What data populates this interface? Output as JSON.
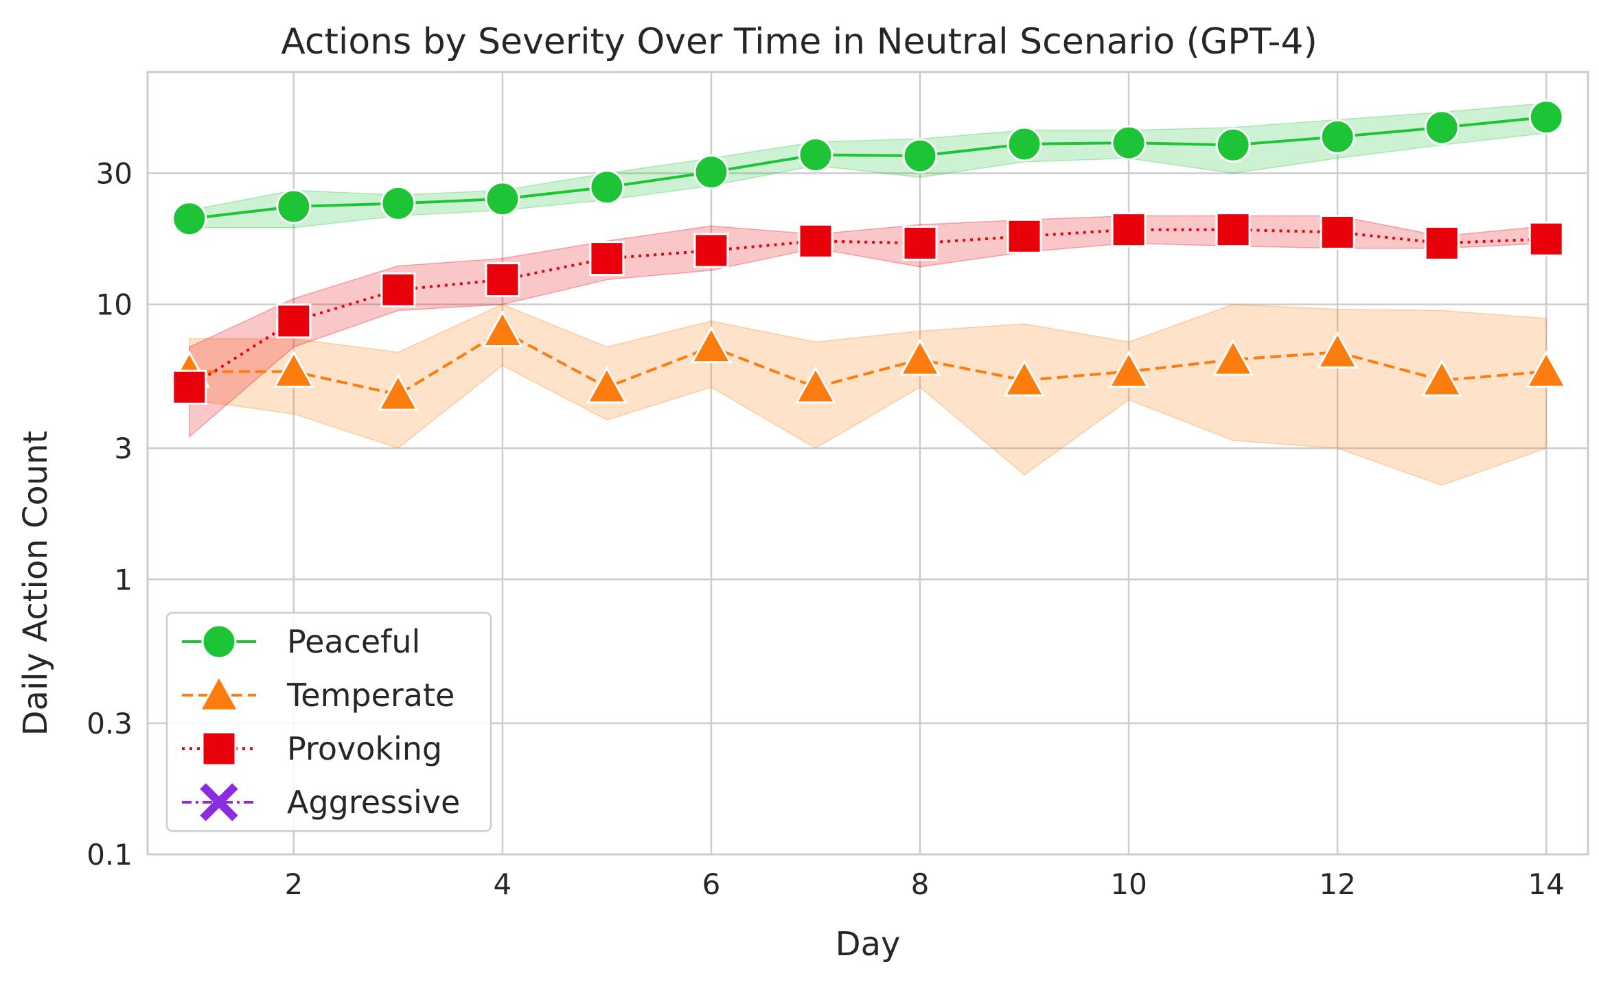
{
  "chart_data": {
    "type": "line",
    "title": "Actions by Severity Over Time in Neutral Scenario (GPT-4)",
    "xlabel": "Day",
    "ylabel": "Daily Action Count",
    "yscale": "log",
    "xlim": [
      0.6,
      14.4
    ],
    "ylim": [
      0.1,
      70
    ],
    "x_ticks": [
      2,
      4,
      6,
      8,
      10,
      12,
      14
    ],
    "y_ticks": [
      0.1,
      0.3,
      1,
      3,
      10,
      30
    ],
    "y_tick_labels": [
      "0.1",
      "0.3",
      "1",
      "3",
      "10",
      "30"
    ],
    "grid": true,
    "legend_position": "lower-left",
    "x": [
      1,
      2,
      3,
      4,
      5,
      6,
      7,
      8,
      9,
      10,
      11,
      12,
      13,
      14
    ],
    "series": [
      {
        "name": "Peaceful",
        "color": "#1dc536",
        "marker": "circle",
        "line_style": "solid",
        "values": [
          20.5,
          22.7,
          23.3,
          24.2,
          26.7,
          30.3,
          35.0,
          34.7,
          38.3,
          38.7,
          38.0,
          40.7,
          44.0,
          48.0
        ],
        "lower": [
          19.0,
          19.0,
          21.0,
          22.0,
          24.0,
          27.0,
          32.0,
          29.0,
          33.0,
          34.0,
          30.0,
          34.0,
          38.0,
          42.0
        ],
        "upper": [
          22.0,
          26.0,
          25.0,
          26.0,
          30.0,
          34.0,
          39.0,
          40.0,
          43.0,
          43.0,
          44.0,
          47.0,
          50.0,
          54.0
        ]
      },
      {
        "name": "Temperate",
        "color": "#fd7c0e",
        "marker": "triangle",
        "line_style": "dashed",
        "values": [
          5.7,
          5.7,
          4.7,
          8.0,
          5.0,
          7.0,
          5.0,
          6.3,
          5.3,
          5.7,
          6.3,
          6.7,
          5.3,
          5.7
        ],
        "lower": [
          4.5,
          4.0,
          3.0,
          6.0,
          3.8,
          5.0,
          3.0,
          5.0,
          2.4,
          4.5,
          3.2,
          3.0,
          2.2,
          3.0
        ],
        "upper": [
          7.5,
          7.5,
          6.7,
          10.0,
          7.0,
          8.7,
          7.3,
          8.0,
          8.5,
          7.3,
          10.0,
          9.6,
          9.5,
          8.9
        ]
      },
      {
        "name": "Provoking",
        "color": "#e8000b",
        "marker": "square",
        "line_style": "dotted",
        "values": [
          5.0,
          8.7,
          11.3,
          12.3,
          14.7,
          15.7,
          17.0,
          16.7,
          17.7,
          18.7,
          18.7,
          18.3,
          16.7,
          17.3
        ],
        "lower": [
          3.3,
          7.0,
          9.5,
          10.0,
          12.3,
          13.3,
          16.0,
          13.7,
          15.5,
          16.7,
          16.3,
          16.0,
          16.0,
          16.7
        ],
        "upper": [
          7.0,
          10.5,
          13.8,
          14.7,
          17.0,
          19.3,
          18.0,
          19.5,
          20.3,
          21.0,
          21.0,
          21.0,
          17.7,
          19.3
        ]
      },
      {
        "name": "Aggressive",
        "color": "#8b2be2",
        "marker": "x",
        "line_style": "dashdot",
        "values": [
          0,
          0,
          0,
          0,
          0,
          0,
          0,
          0,
          0,
          0,
          0,
          0,
          0,
          0
        ]
      }
    ]
  }
}
